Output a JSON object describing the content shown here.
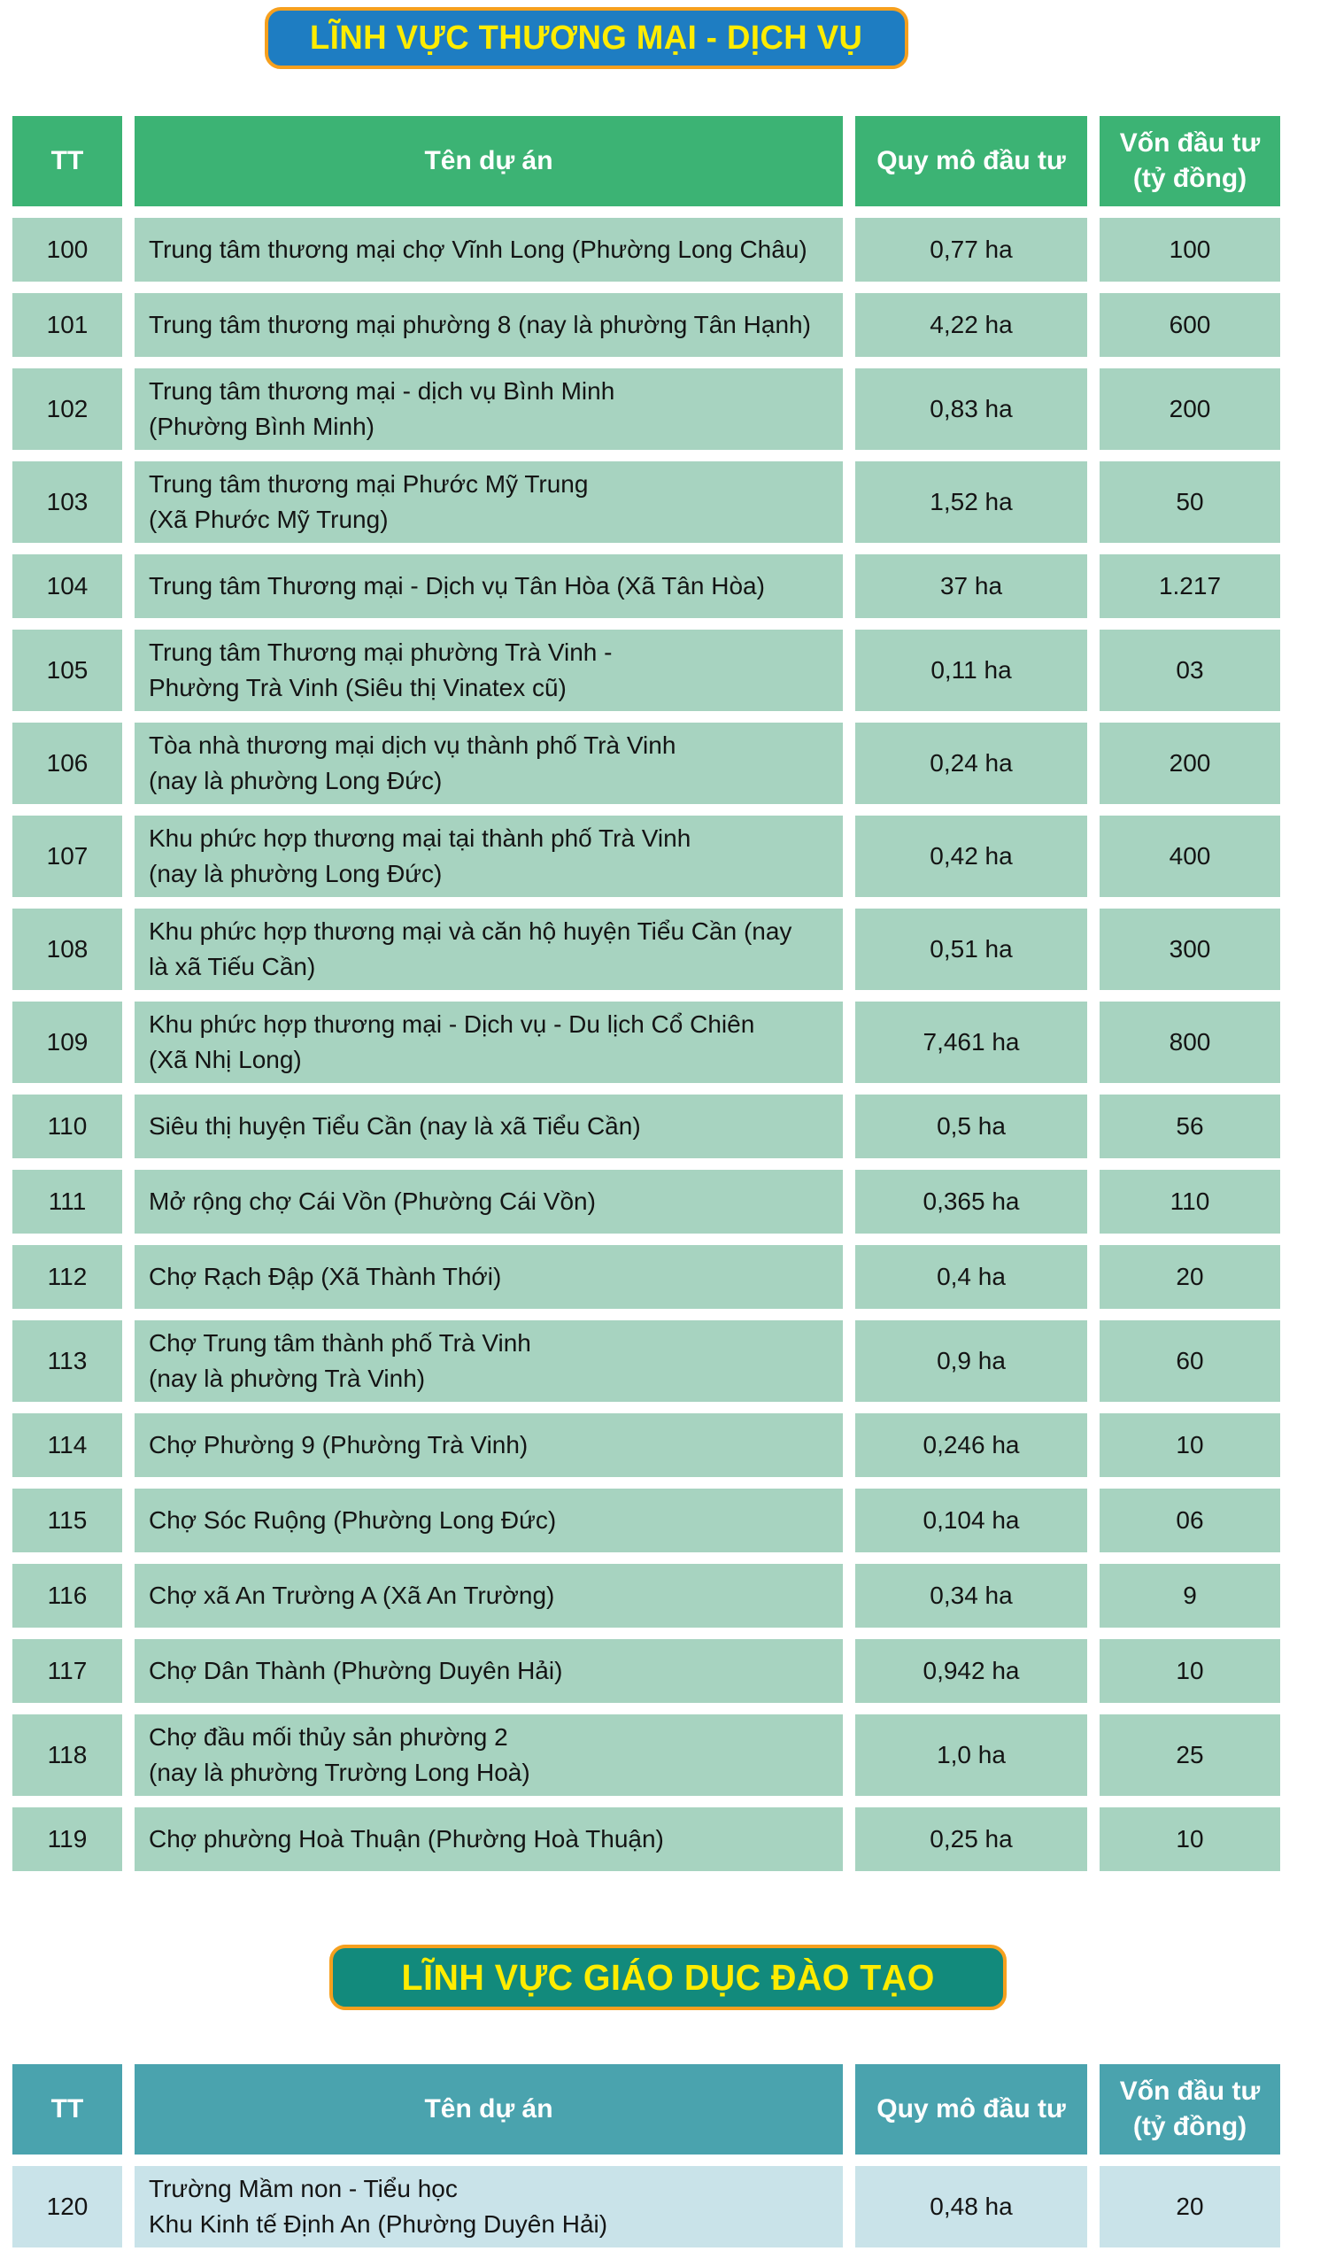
{
  "sections": [
    {
      "id": "commerce-services",
      "banner": {
        "label": "LĨNH VỰC THƯƠNG MẠI - DỊCH VỤ",
        "bg_color": "#1e7dc2",
        "border_color": "#f6a01e",
        "text_color": "#ffec00"
      },
      "table": {
        "header_bg": "#3cb374",
        "row_bg": "#a7d3c0",
        "columns": {
          "tt": "TT",
          "name": "Tên dự án",
          "scale": "Quy mô đầu tư",
          "capital": "Vốn đầu tư\n(tỷ đồng)"
        },
        "rows": [
          {
            "tt": "100",
            "name": "Trung tâm thương mại chợ Vĩnh Long (Phường Long Châu)",
            "scale": "0,77 ha",
            "capital": "100"
          },
          {
            "tt": "101",
            "name": "Trung tâm thương mại phường 8 (nay là phường Tân Hạnh)",
            "scale": "4,22 ha",
            "capital": "600"
          },
          {
            "tt": "102",
            "name": "Trung tâm thương mại - dịch vụ Bình Minh\n(Phường Bình Minh)",
            "scale": "0,83 ha",
            "capital": "200"
          },
          {
            "tt": "103",
            "name": "Trung tâm thương mại Phước Mỹ Trung\n(Xã Phước Mỹ Trung)",
            "scale": "1,52 ha",
            "capital": "50"
          },
          {
            "tt": "104",
            "name": "Trung tâm Thương mại - Dịch vụ Tân Hòa (Xã Tân Hòa)",
            "scale": "37 ha",
            "capital": "1.217"
          },
          {
            "tt": "105",
            "name": "Trung tâm Thương mại phường Trà Vinh -\nPhường Trà Vinh (Siêu thị Vinatex cũ)",
            "scale": "0,11 ha",
            "capital": "03"
          },
          {
            "tt": "106",
            "name": "Tòa nhà thương mại dịch vụ thành phố Trà Vinh\n(nay là phường Long Đức)",
            "scale": "0,24 ha",
            "capital": "200"
          },
          {
            "tt": "107",
            "name": "Khu phức hợp thương mại tại thành phố Trà Vinh\n(nay là phường Long Đức)",
            "scale": "0,42 ha",
            "capital": "400"
          },
          {
            "tt": "108",
            "name": "Khu phức hợp thương mại và căn hộ huyện Tiểu Cần (nay\nlà xã Tiếu Cần)",
            "scale": "0,51 ha",
            "capital": "300"
          },
          {
            "tt": "109",
            "name": "Khu phức hợp thương mại - Dịch vụ - Du lịch Cổ Chiên\n(Xã Nhị Long)",
            "scale": "7,461 ha",
            "capital": "800"
          },
          {
            "tt": "110",
            "name": "Siêu thị huyện Tiểu Cần (nay là xã Tiểu Cần)",
            "scale": "0,5 ha",
            "capital": "56"
          },
          {
            "tt": "111",
            "name": "Mở rộng chợ Cái Vồn (Phường Cái Vồn)",
            "scale": "0,365 ha",
            "capital": "110"
          },
          {
            "tt": "112",
            "name": "Chợ Rạch Đập (Xã Thành Thới)",
            "scale": "0,4 ha",
            "capital": "20"
          },
          {
            "tt": "113",
            "name": "Chợ Trung tâm thành phố Trà Vinh\n(nay là phường Trà Vinh)",
            "scale": "0,9 ha",
            "capital": "60"
          },
          {
            "tt": "114",
            "name": "Chợ Phường 9 (Phường Trà Vinh)",
            "scale": "0,246 ha",
            "capital": "10"
          },
          {
            "tt": "115",
            "name": "Chợ Sóc Ruộng (Phường Long Đức)",
            "scale": "0,104 ha",
            "capital": "06"
          },
          {
            "tt": "116",
            "name": "Chợ xã An Trường A (Xã An Trường)",
            "scale": "0,34 ha",
            "capital": "9"
          },
          {
            "tt": "117",
            "name": "Chợ Dân Thành (Phường Duyên Hải)",
            "scale": "0,942 ha",
            "capital": "10"
          },
          {
            "tt": "118",
            "name": "Chợ đầu mối thủy sản phường 2\n(nay là phường Trường Long Hoà)",
            "scale": "1,0 ha",
            "capital": "25"
          },
          {
            "tt": "119",
            "name": "Chợ phường Hoà Thuận (Phường Hoà Thuận)",
            "scale": "0,25 ha",
            "capital": "10"
          }
        ]
      }
    },
    {
      "id": "education-training",
      "banner": {
        "label": "LĨNH VỰC GIÁO DỤC ĐÀO TẠO",
        "bg_color": "#128a7c",
        "border_color": "#f6a01e",
        "text_color": "#ffec00"
      },
      "table": {
        "header_bg": "#4aa3ae",
        "row_bg": "#c9e3e9",
        "columns": {
          "tt": "TT",
          "name": "Tên dự án",
          "scale": "Quy mô đầu tư",
          "capital": "Vốn đầu tư\n(tỷ đồng)"
        },
        "rows": [
          {
            "tt": "120",
            "name": "Trường Mầm non - Tiểu học\nKhu Kinh tế Định An (Phường Duyên Hải)",
            "scale": "0,48 ha",
            "capital": "20"
          }
        ]
      }
    }
  ]
}
